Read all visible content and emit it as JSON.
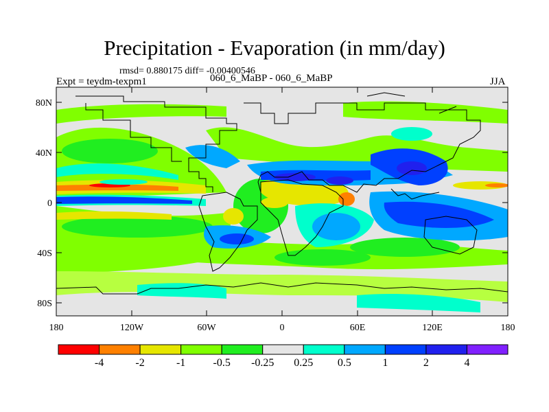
{
  "header": {
    "title": "Precipitation - Evaporation (in mm/day)",
    "stats": "rmsd= 0.880175 diff= -0.00400546",
    "expt": "Expt = teydm-texpm1",
    "cases": "060_6_MaBP - 060_6_MaBP",
    "season": "JJA"
  },
  "axes": {
    "lat_ticks": [
      "80N",
      "40N",
      "0",
      "40S",
      "80S"
    ],
    "lon_ticks": [
      "180",
      "120W",
      "60W",
      "0",
      "60E",
      "120E",
      "180"
    ]
  },
  "legend": {
    "colors": [
      "#ff0000",
      "#ff8000",
      "#e6e600",
      "#80ff00",
      "#20ee20",
      "#e5e5e5",
      "#00ffcc",
      "#00a8ff",
      "#0040ff",
      "#2020ee",
      "#8020ff"
    ],
    "labels": [
      "-4",
      "-2",
      "-1",
      "-0.5",
      "-0.25",
      "0.25",
      "0.5",
      "1",
      "2",
      "4"
    ]
  }
}
